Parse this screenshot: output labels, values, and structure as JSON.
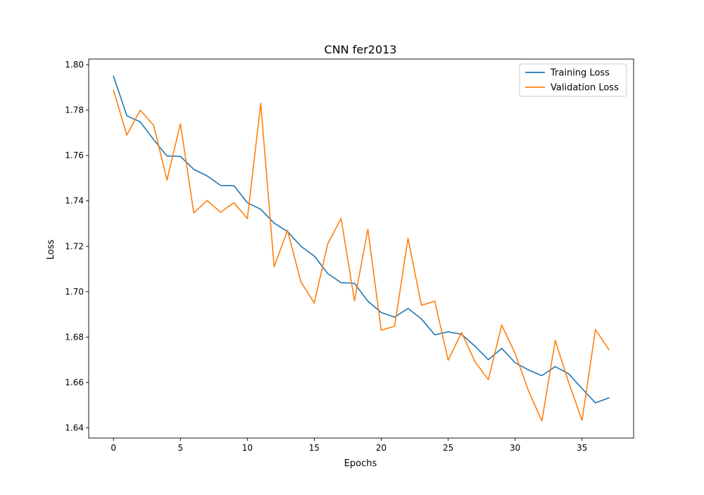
{
  "chart_data": {
    "type": "line",
    "title": "CNN fer2013",
    "xlabel": "Epochs",
    "ylabel": "Loss",
    "xlim": [
      -1.85,
      38.85
    ],
    "ylim": [
      1.6355,
      1.8025
    ],
    "x_ticks": [
      0,
      5,
      10,
      15,
      20,
      25,
      30,
      35
    ],
    "y_ticks": [
      1.64,
      1.66,
      1.68,
      1.7,
      1.72,
      1.74,
      1.76,
      1.78,
      1.8
    ],
    "y_tick_labels": [
      "1.64",
      "1.66",
      "1.68",
      "1.70",
      "1.72",
      "1.74",
      "1.76",
      "1.78",
      "1.80"
    ],
    "grid": false,
    "legend_position": "top-right",
    "x": [
      0,
      1,
      2,
      3,
      4,
      5,
      6,
      7,
      8,
      9,
      10,
      11,
      12,
      13,
      14,
      15,
      16,
      17,
      18,
      19,
      20,
      21,
      22,
      23,
      24,
      25,
      26,
      27,
      28,
      29,
      30,
      31,
      32,
      33,
      34,
      35,
      36,
      37
    ],
    "series": [
      {
        "name": "Training Loss",
        "color": "#1f77b4",
        "values": [
          1.795,
          1.7775,
          1.7748,
          1.767,
          1.7598,
          1.7596,
          1.7539,
          1.751,
          1.7468,
          1.7467,
          1.7392,
          1.7363,
          1.7302,
          1.7265,
          1.72,
          1.7157,
          1.708,
          1.704,
          1.7037,
          1.6958,
          1.6908,
          1.6888,
          1.6926,
          1.688,
          1.681,
          1.6823,
          1.6812,
          1.676,
          1.67,
          1.675,
          1.6687,
          1.6655,
          1.663,
          1.667,
          1.6638,
          1.6573,
          1.651,
          1.6532
        ]
      },
      {
        "name": "Validation Loss",
        "color": "#ff7f0e",
        "values": [
          1.7888,
          1.769,
          1.78,
          1.7733,
          1.7492,
          1.774,
          1.7347,
          1.7402,
          1.735,
          1.7392,
          1.7322,
          1.783,
          1.711,
          1.727,
          1.7043,
          1.695,
          1.721,
          1.7323,
          1.696,
          1.7275,
          1.683,
          1.6848,
          1.7235,
          1.694,
          1.6958,
          1.6698,
          1.682,
          1.6692,
          1.6612,
          1.6853,
          1.6728,
          1.6563,
          1.643,
          1.6785,
          1.66,
          1.6433,
          1.6833,
          1.6745
        ]
      }
    ]
  }
}
